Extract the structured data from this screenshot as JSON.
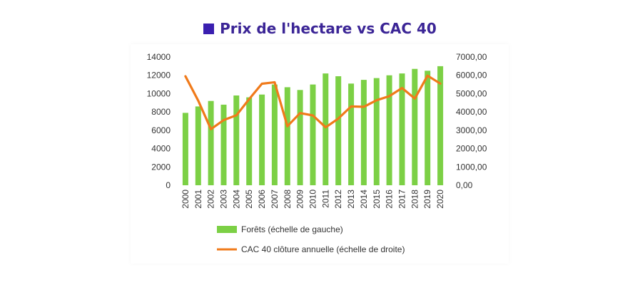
{
  "header": {
    "title": "Prix de l'hectare vs CAC 40"
  },
  "chart_data": {
    "type": "bar+line",
    "title": "Prix de l'hectare vs CAC 40",
    "categories": [
      "2000",
      "2001",
      "2002",
      "2003",
      "2004",
      "2005",
      "2006",
      "2007",
      "2008",
      "2009",
      "2010",
      "2011",
      "2012",
      "2013",
      "2014",
      "2015",
      "2016",
      "2017",
      "2018",
      "2019",
      "2020"
    ],
    "series": [
      {
        "name": "Forêts (échelle de gauche)",
        "type": "bar",
        "axis": "left",
        "color": "#7cd045",
        "values": [
          7900,
          8600,
          9200,
          8800,
          9800,
          9600,
          9900,
          11000,
          10700,
          10400,
          11000,
          12200,
          11900,
          11100,
          11500,
          11700,
          12000,
          12200,
          12700,
          12500,
          13000
        ]
      },
      {
        "name": "CAC 40 clôture annuelle (échelle de droite)",
        "type": "line",
        "axis": "right",
        "color": "#f07a1a",
        "values": [
          5950,
          4620,
          3060,
          3560,
          3820,
          4700,
          5540,
          5620,
          3220,
          3940,
          3810,
          3160,
          3640,
          4300,
          4280,
          4640,
          4860,
          5310,
          4730,
          5980,
          5550
        ]
      }
    ],
    "left_axis": {
      "ylim": [
        0,
        14000
      ],
      "ticks": [
        "0",
        "2000",
        "4000",
        "6000",
        "8000",
        "10000",
        "12000",
        "14000"
      ]
    },
    "right_axis": {
      "ylim": [
        0,
        7000
      ],
      "ticks": [
        "0,00",
        "1000,00",
        "2000,00",
        "3000,00",
        "4000,00",
        "5000,00",
        "6000,00",
        "7000,00"
      ]
    },
    "grid": false,
    "legend_placement": "bottom"
  }
}
